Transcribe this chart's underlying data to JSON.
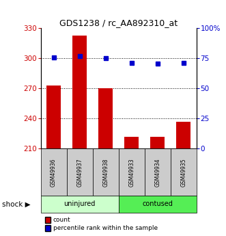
{
  "title": "GDS1238 / rc_AA892310_at",
  "categories": [
    "GSM49936",
    "GSM49937",
    "GSM49938",
    "GSM49933",
    "GSM49934",
    "GSM49935"
  ],
  "bar_values": [
    273,
    323,
    270,
    222,
    222,
    237
  ],
  "percentile_values": [
    76,
    77,
    75,
    71,
    70.5,
    71
  ],
  "bar_color": "#cc0000",
  "percentile_color": "#0000cc",
  "ylim_left": [
    210,
    330
  ],
  "ylim_right": [
    0,
    100
  ],
  "yticks_left": [
    210,
    240,
    270,
    300,
    330
  ],
  "yticks_right": [
    0,
    25,
    50,
    75,
    100
  ],
  "uninjured_color": "#ccffcc",
  "contused_color": "#55ee55",
  "sample_box_color": "#cccccc",
  "legend_count": "count",
  "legend_percentile": "percentile rank within the sample"
}
